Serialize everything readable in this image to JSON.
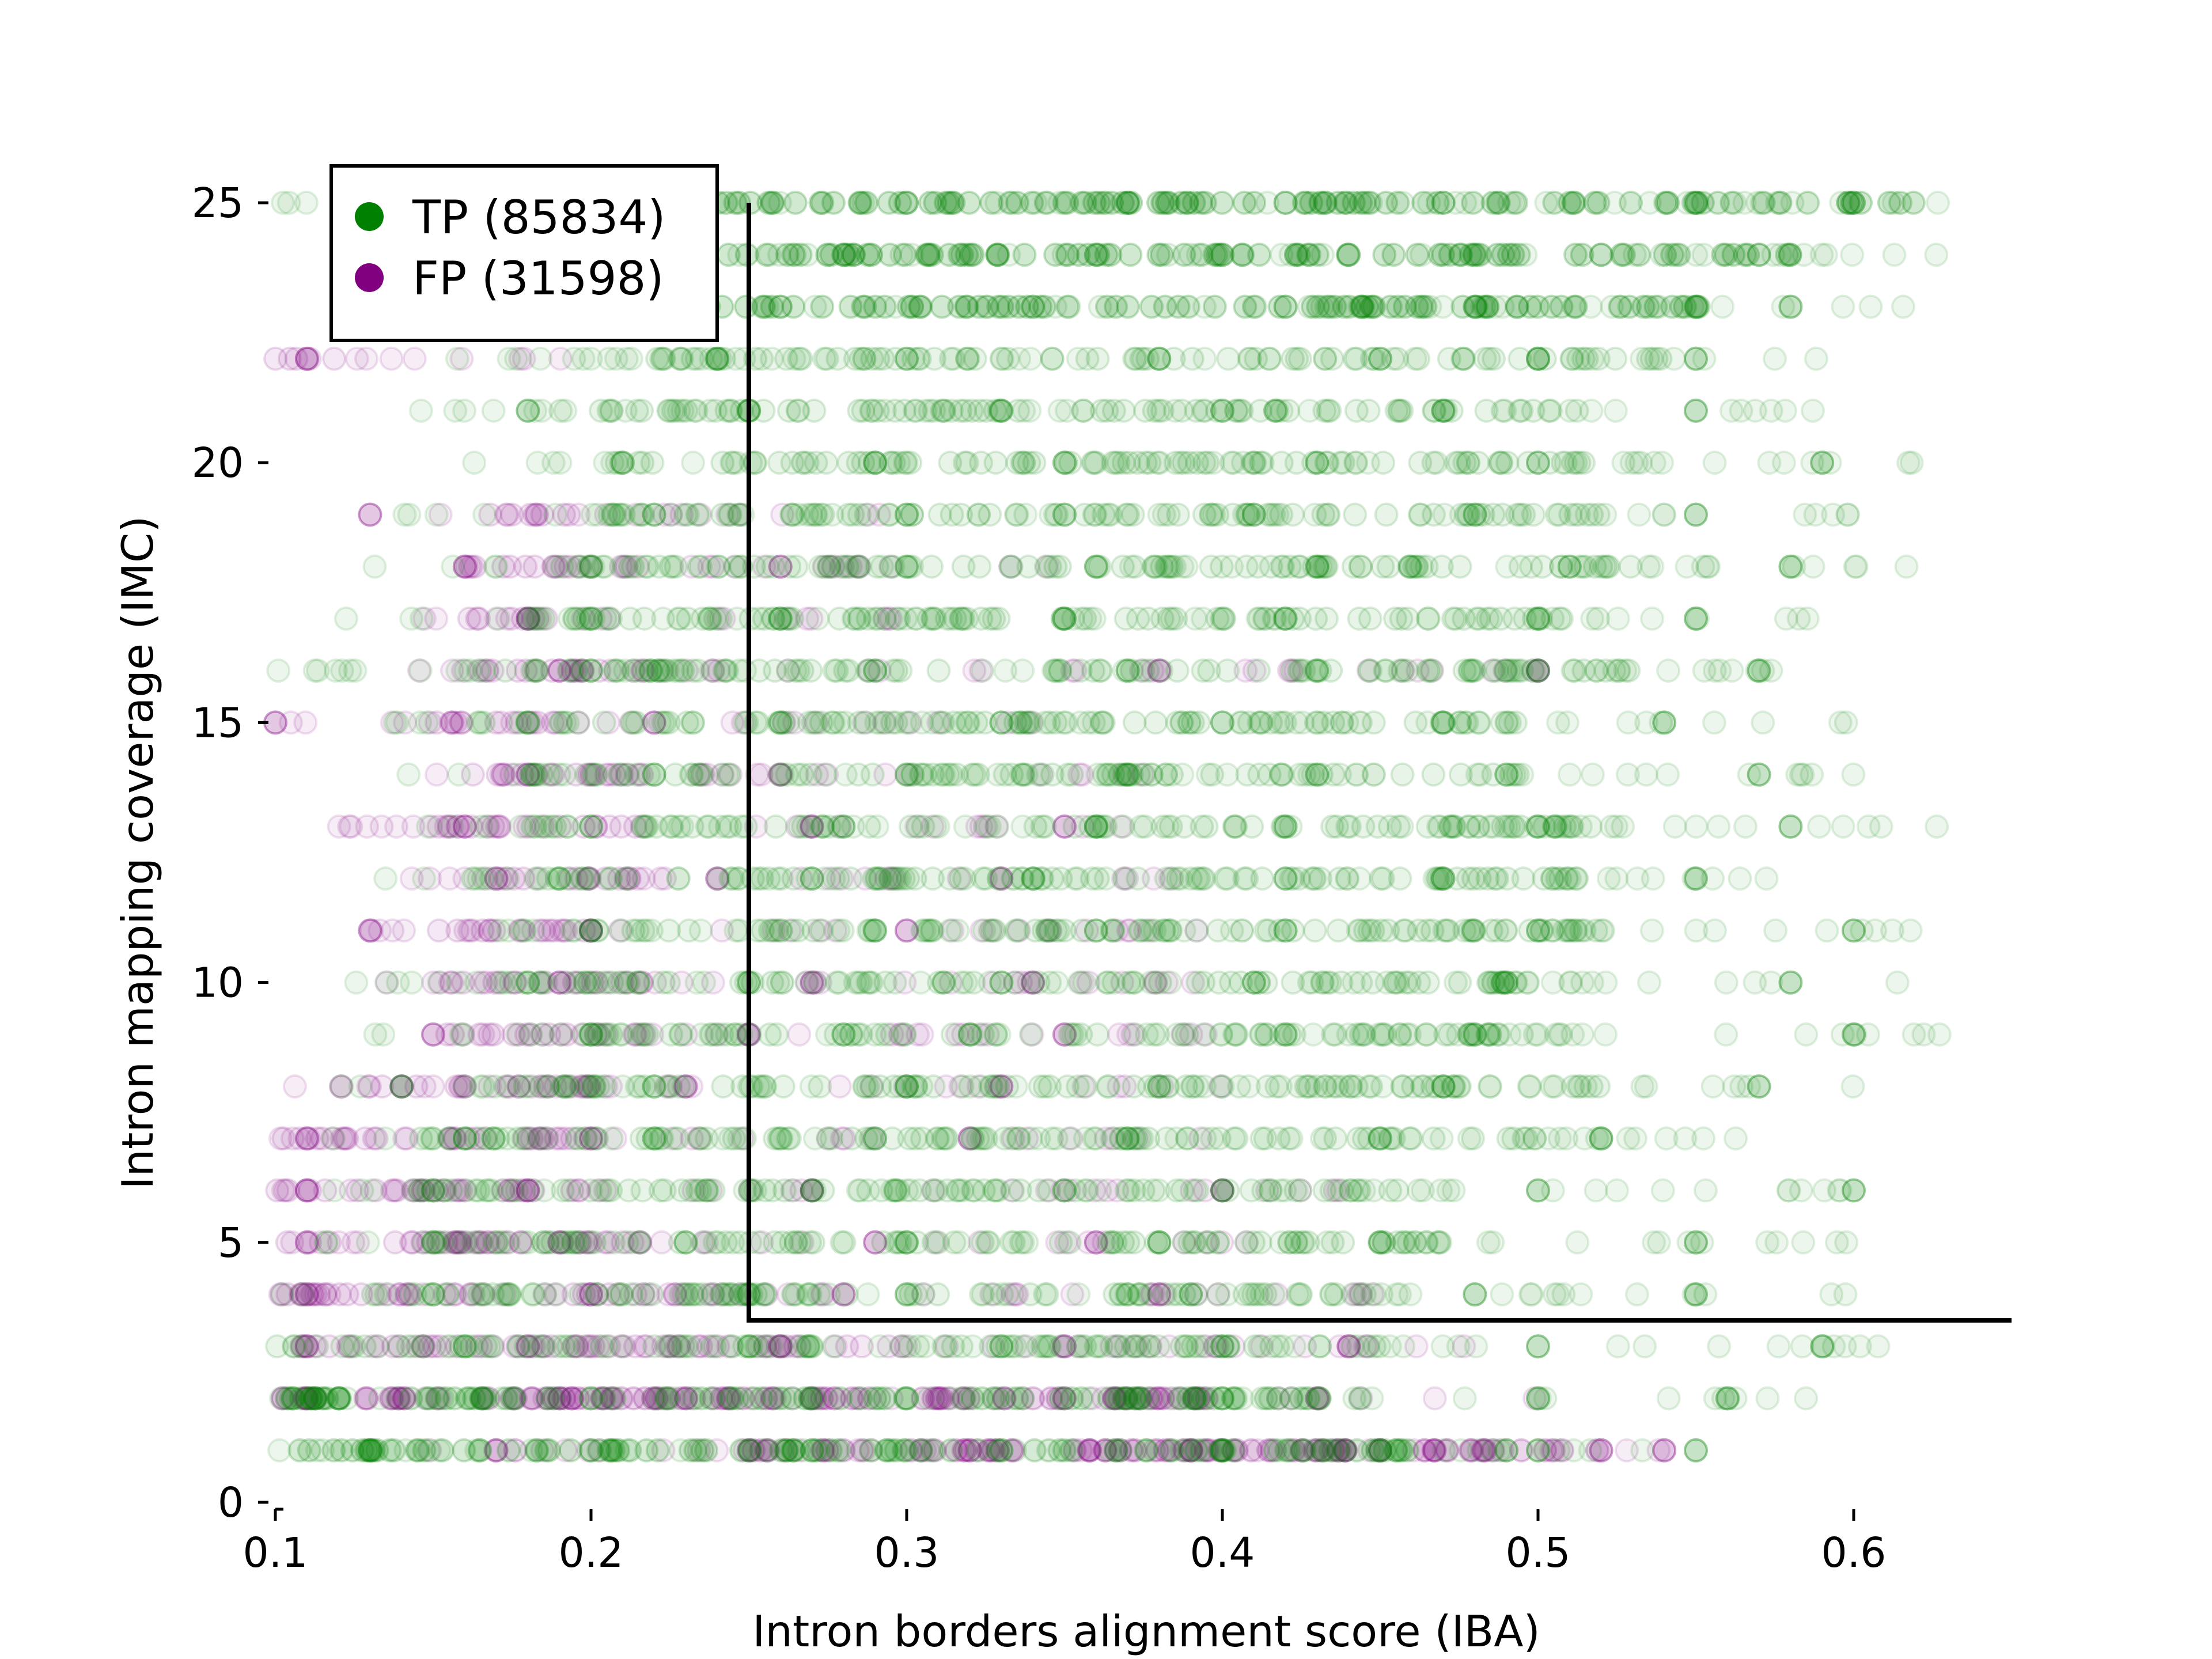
{
  "chart_data": {
    "type": "scatter",
    "xlabel": "Intron borders alignment score (IBA)",
    "ylabel": "Intron mapping coverage (IMC)",
    "xlim": [
      0.1,
      0.65
    ],
    "ylim": [
      0,
      26
    ],
    "x_ticks": [
      "0.1",
      "0.2",
      "0.3",
      "0.4",
      "0.5",
      "0.6"
    ],
    "x_tick_values": [
      0.1,
      0.2,
      0.3,
      0.4,
      0.5,
      0.6
    ],
    "y_ticks": [
      "0",
      "5",
      "10",
      "15",
      "20",
      "25"
    ],
    "y_tick_values": [
      0,
      5,
      10,
      15,
      20,
      25
    ],
    "grid": false,
    "legend_position": "top-left",
    "series": [
      {
        "name": "TP (85834)",
        "color": "#008000",
        "marker": "circle",
        "rows": [
          {
            "y": 1,
            "x_range": [
              0.1,
              0.55
            ],
            "dense": [
              0.1,
              0.47
            ],
            "points": [
              0.13,
              0.2,
              0.27,
              0.33,
              0.4,
              0.45,
              0.49,
              0.5,
              0.55
            ]
          },
          {
            "y": 2,
            "x_range": [
              0.1,
              0.6
            ],
            "dense": [
              0.1,
              0.45
            ],
            "points": [
              0.12,
              0.2,
              0.3,
              0.4,
              0.5,
              0.56
            ]
          },
          {
            "y": 3,
            "x_range": [
              0.1,
              0.61
            ],
            "dense": [
              0.1,
              0.45
            ],
            "points": [
              0.16,
              0.25,
              0.33,
              0.4,
              0.5,
              0.59
            ]
          },
          {
            "y": 4,
            "x_range": [
              0.1,
              0.6
            ],
            "dense": [
              0.13,
              0.45
            ],
            "points": [
              0.15,
              0.25,
              0.3,
              0.39,
              0.48,
              0.55
            ]
          },
          {
            "y": 5,
            "x_range": [
              0.11,
              0.6
            ],
            "dense": [
              0.15,
              0.48
            ],
            "points": [
              0.15,
              0.23,
              0.3,
              0.38,
              0.45,
              0.55
            ]
          },
          {
            "y": 6,
            "x_range": [
              0.11,
              0.61
            ],
            "dense": [
              0.14,
              0.46
            ],
            "points": [
              0.15,
              0.27,
              0.35,
              0.4,
              0.5,
              0.6
            ]
          },
          {
            "y": 7,
            "x_range": [
              0.11,
              0.6
            ],
            "dense": [
              0.14,
              0.5
            ],
            "points": [
              0.16,
              0.22,
              0.29,
              0.37,
              0.45,
              0.52
            ]
          },
          {
            "y": 8,
            "x_range": [
              0.12,
              0.62
            ],
            "dense": [
              0.16,
              0.52
            ],
            "points": [
              0.14,
              0.22,
              0.3,
              0.38,
              0.47,
              0.57
            ]
          },
          {
            "y": 9,
            "x_range": [
              0.13,
              0.63
            ],
            "dense": [
              0.18,
              0.5
            ],
            "points": [
              0.2,
              0.28,
              0.32,
              0.42,
              0.48,
              0.6
            ]
          },
          {
            "y": 10,
            "x_range": [
              0.12,
              0.62
            ],
            "dense": [
              0.17,
              0.5
            ],
            "points": [
              0.18,
              0.25,
              0.33,
              0.41,
              0.49,
              0.58
            ]
          },
          {
            "y": 11,
            "x_range": [
              0.14,
              0.62
            ],
            "dense": [
              0.17,
              0.52
            ],
            "points": [
              0.2,
              0.29,
              0.36,
              0.42,
              0.5,
              0.6
            ]
          },
          {
            "y": 12,
            "x_range": [
              0.12,
              0.6
            ],
            "dense": [
              0.16,
              0.52
            ],
            "points": [
              0.19,
              0.27,
              0.34,
              0.42,
              0.47,
              0.55
            ]
          },
          {
            "y": 13,
            "x_range": [
              0.14,
              0.63
            ],
            "dense": [
              0.18,
              0.52
            ],
            "points": [
              0.2,
              0.28,
              0.36,
              0.42,
              0.5,
              0.58
            ]
          },
          {
            "y": 14,
            "x_range": [
              0.12,
              0.6
            ],
            "dense": [
              0.18,
              0.5
            ],
            "points": [
              0.22,
              0.3,
              0.37,
              0.43,
              0.49,
              0.57
            ]
          },
          {
            "y": 15,
            "x_range": [
              0.1,
              0.6
            ],
            "dense": [
              0.16,
              0.5
            ],
            "points": [
              0.18,
              0.26,
              0.33,
              0.4,
              0.47,
              0.54
            ]
          },
          {
            "y": 16,
            "x_range": [
              0.1,
              0.6
            ],
            "dense": [
              0.16,
              0.53
            ],
            "points": [
              0.2,
              0.29,
              0.37,
              0.43,
              0.5,
              0.57
            ]
          },
          {
            "y": 17,
            "x_range": [
              0.12,
              0.61
            ],
            "dense": [
              0.17,
              0.52
            ],
            "points": [
              0.2,
              0.26,
              0.35,
              0.42,
              0.5,
              0.55
            ]
          },
          {
            "y": 18,
            "x_range": [
              0.13,
              0.62
            ],
            "dense": [
              0.18,
              0.53
            ],
            "points": [
              0.2,
              0.3,
              0.36,
              0.43,
              0.51,
              0.58
            ]
          },
          {
            "y": 19,
            "x_range": [
              0.14,
              0.6
            ],
            "dense": [
              0.19,
              0.52
            ],
            "points": [
              0.22,
              0.3,
              0.35,
              0.41,
              0.48,
              0.55
            ]
          },
          {
            "y": 20,
            "x_range": [
              0.15,
              0.62
            ],
            "dense": [
              0.2,
              0.52
            ],
            "points": [
              0.21,
              0.29,
              0.35,
              0.43,
              0.5,
              0.59
            ]
          },
          {
            "y": 21,
            "x_range": [
              0.14,
              0.6
            ],
            "dense": [
              0.19,
              0.52
            ],
            "points": [
              0.18,
              0.25,
              0.33,
              0.4,
              0.47,
              0.55
            ]
          },
          {
            "y": 22,
            "x_range": [
              0.15,
              0.6
            ],
            "dense": [
              0.22,
              0.54
            ],
            "points": [
              0.24,
              0.3,
              0.38,
              0.45,
              0.5,
              0.55
            ]
          },
          {
            "y": 23,
            "x_range": [
              0.16,
              0.62
            ],
            "dense": [
              0.23,
              0.56
            ],
            "points": [
              0.26,
              0.34,
              0.42,
              0.48,
              0.55,
              0.58
            ]
          },
          {
            "y": 24,
            "x_range": [
              0.15,
              0.63
            ],
            "dense": [
              0.24,
              0.58
            ],
            "points": [
              0.28,
              0.36,
              0.4,
              0.44,
              0.52,
              0.57
            ]
          },
          {
            "y": 25,
            "x_range": [
              0.1,
              0.64
            ],
            "dense": [
              0.24,
              0.62
            ],
            "points": [
              0.3,
              0.37,
              0.42,
              0.47,
              0.55,
              0.6
            ]
          }
        ]
      },
      {
        "name": "FP (31598)",
        "color": "#800080",
        "marker": "circle",
        "rows": [
          {
            "y": 1,
            "x_range": [
              0.1,
              0.54
            ],
            "dense": [
              0.25,
              0.52
            ],
            "points": [
              0.17,
              0.25,
              0.32,
              0.39,
              0.45,
              0.52,
              0.54
            ]
          },
          {
            "y": 2,
            "x_range": [
              0.1,
              0.5
            ],
            "dense": [
              0.1,
              0.4
            ],
            "points": [
              0.11,
              0.19,
              0.27,
              0.35,
              0.43
            ]
          },
          {
            "y": 3,
            "x_range": [
              0.1,
              0.48
            ],
            "dense": [
              0.1,
              0.3
            ],
            "points": [
              0.11,
              0.18,
              0.26,
              0.35,
              0.44
            ]
          },
          {
            "y": 4,
            "x_range": [
              0.1,
              0.45
            ],
            "dense": [
              0.1,
              0.25
            ],
            "points": [
              0.11,
              0.2,
              0.28,
              0.38
            ]
          },
          {
            "y": 5,
            "x_range": [
              0.1,
              0.42
            ],
            "dense": [
              0.1,
              0.22
            ],
            "points": [
              0.11,
              0.19,
              0.29,
              0.36
            ]
          },
          {
            "y": 6,
            "x_range": [
              0.1,
              0.45
            ],
            "dense": [
              0.1,
              0.2
            ],
            "points": [
              0.11,
              0.18,
              0.27,
              0.4
            ]
          },
          {
            "y": 7,
            "x_range": [
              0.1,
              0.4
            ],
            "dense": [
              0.1,
              0.2
            ],
            "points": [
              0.11,
              0.2,
              0.32
            ]
          },
          {
            "y": 8,
            "x_range": [
              0.1,
              0.4
            ],
            "dense": [
              0.12,
              0.2
            ],
            "points": [
              0.14,
              0.23,
              0.33
            ]
          },
          {
            "y": 9,
            "x_range": [
              0.12,
              0.4
            ],
            "dense": [
              0.15,
              0.22
            ],
            "points": [
              0.15,
              0.25,
              0.35
            ]
          },
          {
            "y": 10,
            "x_range": [
              0.12,
              0.4
            ],
            "dense": [
              0.15,
              0.22
            ],
            "points": [
              0.19,
              0.27,
              0.34
            ]
          },
          {
            "y": 11,
            "x_range": [
              0.13,
              0.4
            ],
            "dense": [
              0.15,
              0.22
            ],
            "points": [
              0.13,
              0.2,
              0.3
            ]
          },
          {
            "y": 12,
            "x_range": [
              0.14,
              0.4
            ],
            "dense": [
              0.17,
              0.22
            ],
            "points": [
              0.17,
              0.24,
              0.33
            ]
          },
          {
            "y": 13,
            "x_range": [
              0.12,
              0.4
            ],
            "dense": [
              0.15,
              0.22
            ],
            "points": [
              0.16,
              0.27,
              0.35
            ]
          },
          {
            "y": 14,
            "x_range": [
              0.14,
              0.38
            ],
            "dense": [
              0.16,
              0.22
            ],
            "points": [
              0.18,
              0.26
            ]
          },
          {
            "y": 15,
            "x_range": [
              0.1,
              0.35
            ],
            "dense": [
              0.15,
              0.2
            ],
            "points": [
              0.1,
              0.22
            ]
          },
          {
            "y": 16,
            "x_range": [
              0.14,
              0.5
            ],
            "dense": [
              0.16,
              0.22
            ],
            "points": [
              0.19,
              0.38,
              0.5
            ]
          },
          {
            "y": 17,
            "x_range": [
              0.14,
              0.3
            ],
            "dense": [
              0.16,
              0.2
            ],
            "points": [
              0.18
            ]
          },
          {
            "y": 18,
            "x_range": [
              0.15,
              0.35
            ],
            "dense": [
              0.16,
              0.22
            ],
            "points": [
              0.16,
              0.26
            ]
          },
          {
            "y": 19,
            "x_range": [
              0.14,
              0.3
            ],
            "dense": [
              0.16,
              0.2
            ],
            "points": [
              0.13
            ]
          },
          {
            "y": 22,
            "x_range": [
              0.1,
              0.2
            ],
            "dense": [
              0.1,
              0.12
            ],
            "points": [
              0.11
            ]
          }
        ]
      }
    ],
    "threshold_lines": [
      {
        "orientation": "vertical",
        "x": 0.25,
        "y_range": [
          3.5,
          25
        ]
      },
      {
        "orientation": "horizontal",
        "y": 3.5,
        "x_range": [
          0.25,
          0.65
        ]
      }
    ]
  }
}
